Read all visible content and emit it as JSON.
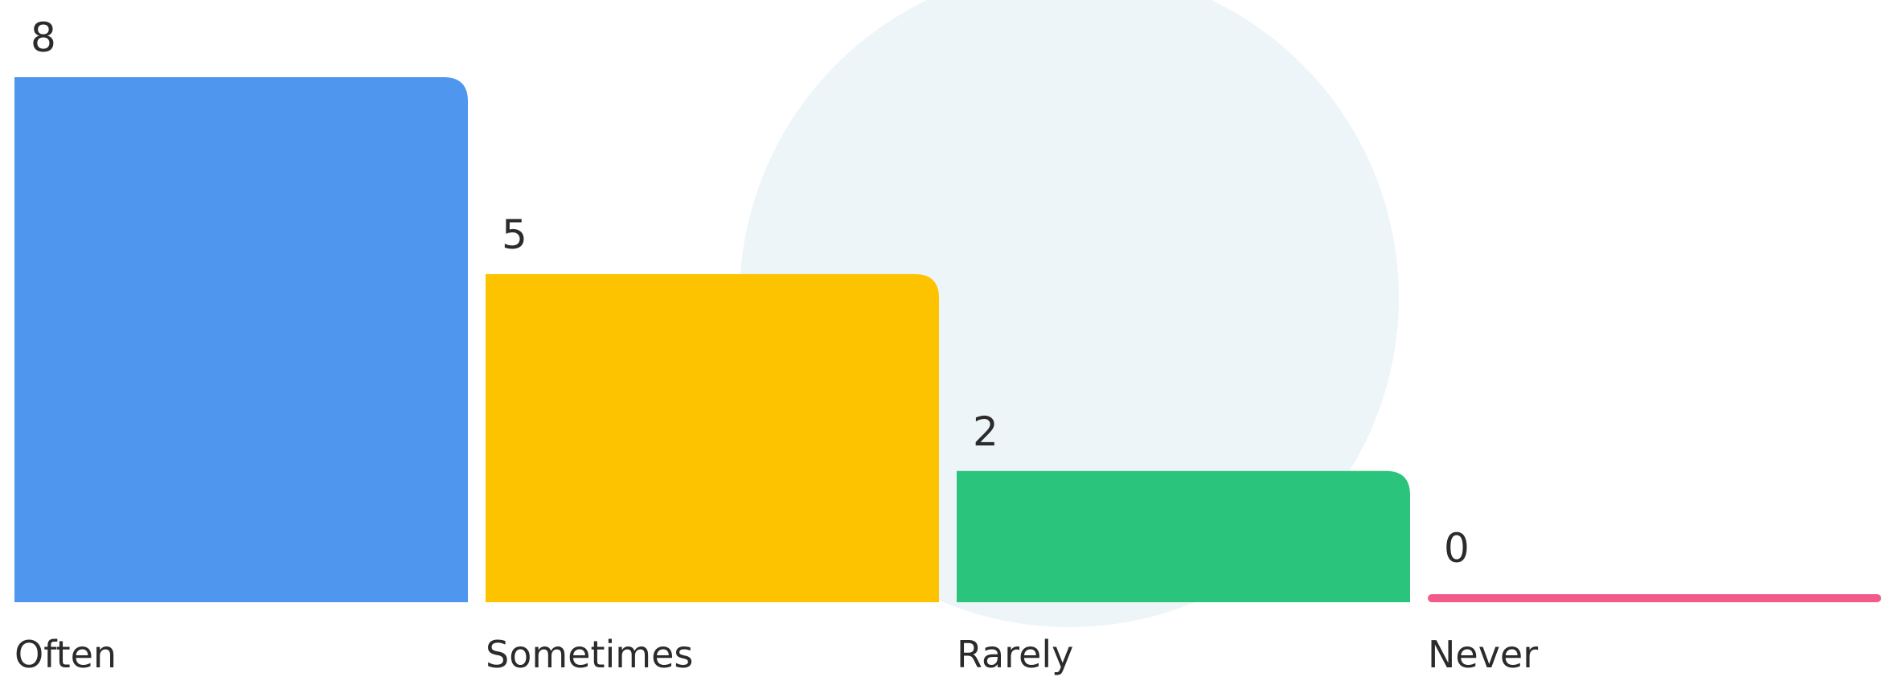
{
  "chart_data": {
    "type": "bar",
    "categories": [
      "Often",
      "Sometimes",
      "Rarely",
      "Never"
    ],
    "values": [
      8,
      5,
      2,
      0
    ],
    "colors": [
      "#4f97ee",
      "#fdc300",
      "#2bc47d",
      "#f25a8a"
    ]
  }
}
